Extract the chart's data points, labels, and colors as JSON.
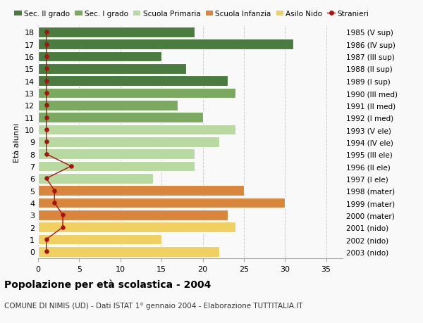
{
  "ages": [
    18,
    17,
    16,
    15,
    14,
    13,
    12,
    11,
    10,
    9,
    8,
    7,
    6,
    5,
    4,
    3,
    2,
    1,
    0
  ],
  "bar_values": [
    19,
    31,
    15,
    18,
    23,
    24,
    17,
    20,
    24,
    22,
    19,
    19,
    14,
    25,
    30,
    23,
    24,
    15,
    22
  ],
  "bar_colors": [
    "#4a7c3f",
    "#4a7c3f",
    "#4a7c3f",
    "#4a7c3f",
    "#4a7c3f",
    "#7aaa5f",
    "#7aaa5f",
    "#7aaa5f",
    "#b8d9a0",
    "#b8d9a0",
    "#b8d9a0",
    "#b8d9a0",
    "#b8d9a0",
    "#d9863c",
    "#d9863c",
    "#d9863c",
    "#f0d060",
    "#f0d060",
    "#f0d060"
  ],
  "right_labels": [
    "1985 (V sup)",
    "1986 (IV sup)",
    "1987 (III sup)",
    "1988 (II sup)",
    "1989 (I sup)",
    "1990 (III med)",
    "1991 (II med)",
    "1992 (I med)",
    "1993 (V ele)",
    "1994 (IV ele)",
    "1995 (III ele)",
    "1996 (II ele)",
    "1997 (I ele)",
    "1998 (mater)",
    "1999 (mater)",
    "2000 (mater)",
    "2001 (nido)",
    "2002 (nido)",
    "2003 (nido)"
  ],
  "stranieri_values": [
    1,
    1,
    1,
    1,
    1,
    1,
    1,
    1,
    1,
    1,
    1,
    4,
    1,
    2,
    2,
    3,
    3,
    1,
    1
  ],
  "legend_labels": [
    "Sec. II grado",
    "Sec. I grado",
    "Scuola Primaria",
    "Scuola Infanzia",
    "Asilo Nido",
    "Stranieri"
  ],
  "legend_colors": [
    "#4a7c3f",
    "#7aaa5f",
    "#b8d9a0",
    "#d9863c",
    "#f0d060",
    "#aa1111"
  ],
  "title": "Popolazione per età scolastica - 2004",
  "subtitle": "COMUNE DI NIMIS (UD) - Dati ISTAT 1° gennaio 2004 - Elaborazione TUTTITALIA.IT",
  "ylabel_left": "Età alunni",
  "xlim": [
    0,
    37
  ],
  "xticks": [
    0,
    5,
    10,
    15,
    20,
    25,
    30,
    35
  ],
  "bg_color": "#f9f9f9",
  "bar_height": 0.85
}
